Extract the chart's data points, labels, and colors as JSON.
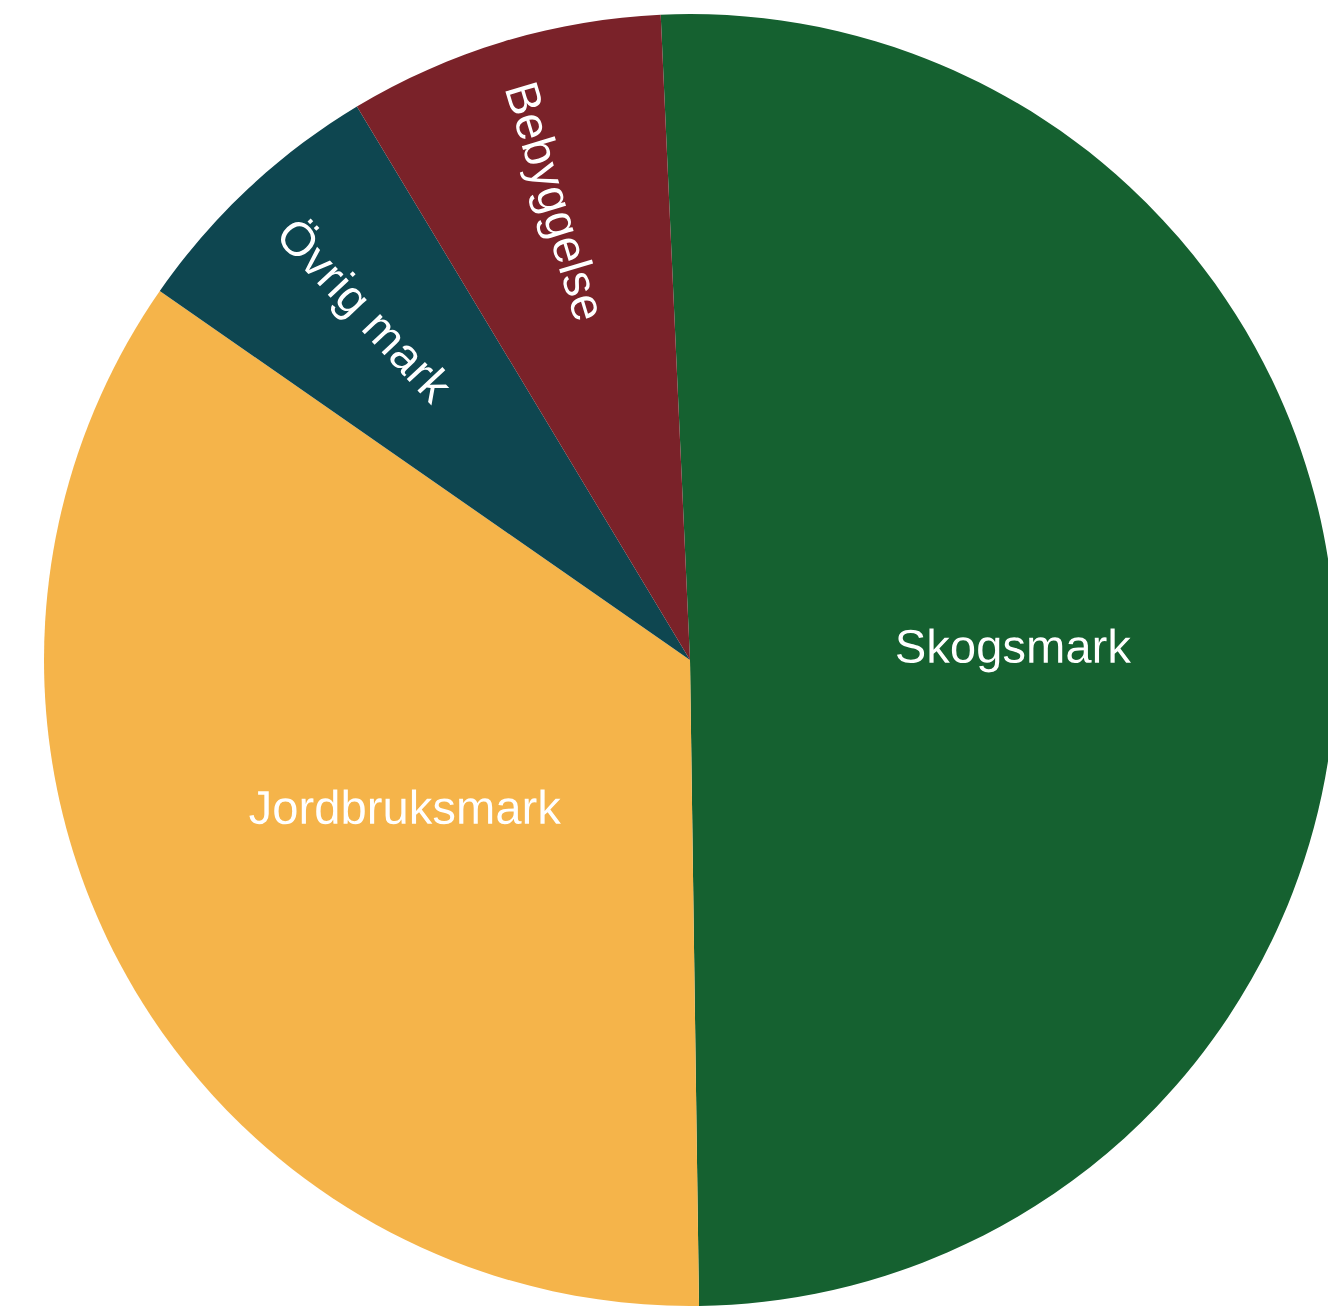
{
  "chart_data": {
    "type": "pie",
    "categories": [
      "Skogsmark",
      "Jordbruksmark",
      "Övrig mark",
      "Bebyggelse"
    ],
    "values": [
      50.5,
      34.9,
      6.7,
      7.9
    ],
    "colors": [
      "#156130",
      "#f5b44a",
      "#0e4650",
      "#7a2229"
    ],
    "legend": false
  }
}
